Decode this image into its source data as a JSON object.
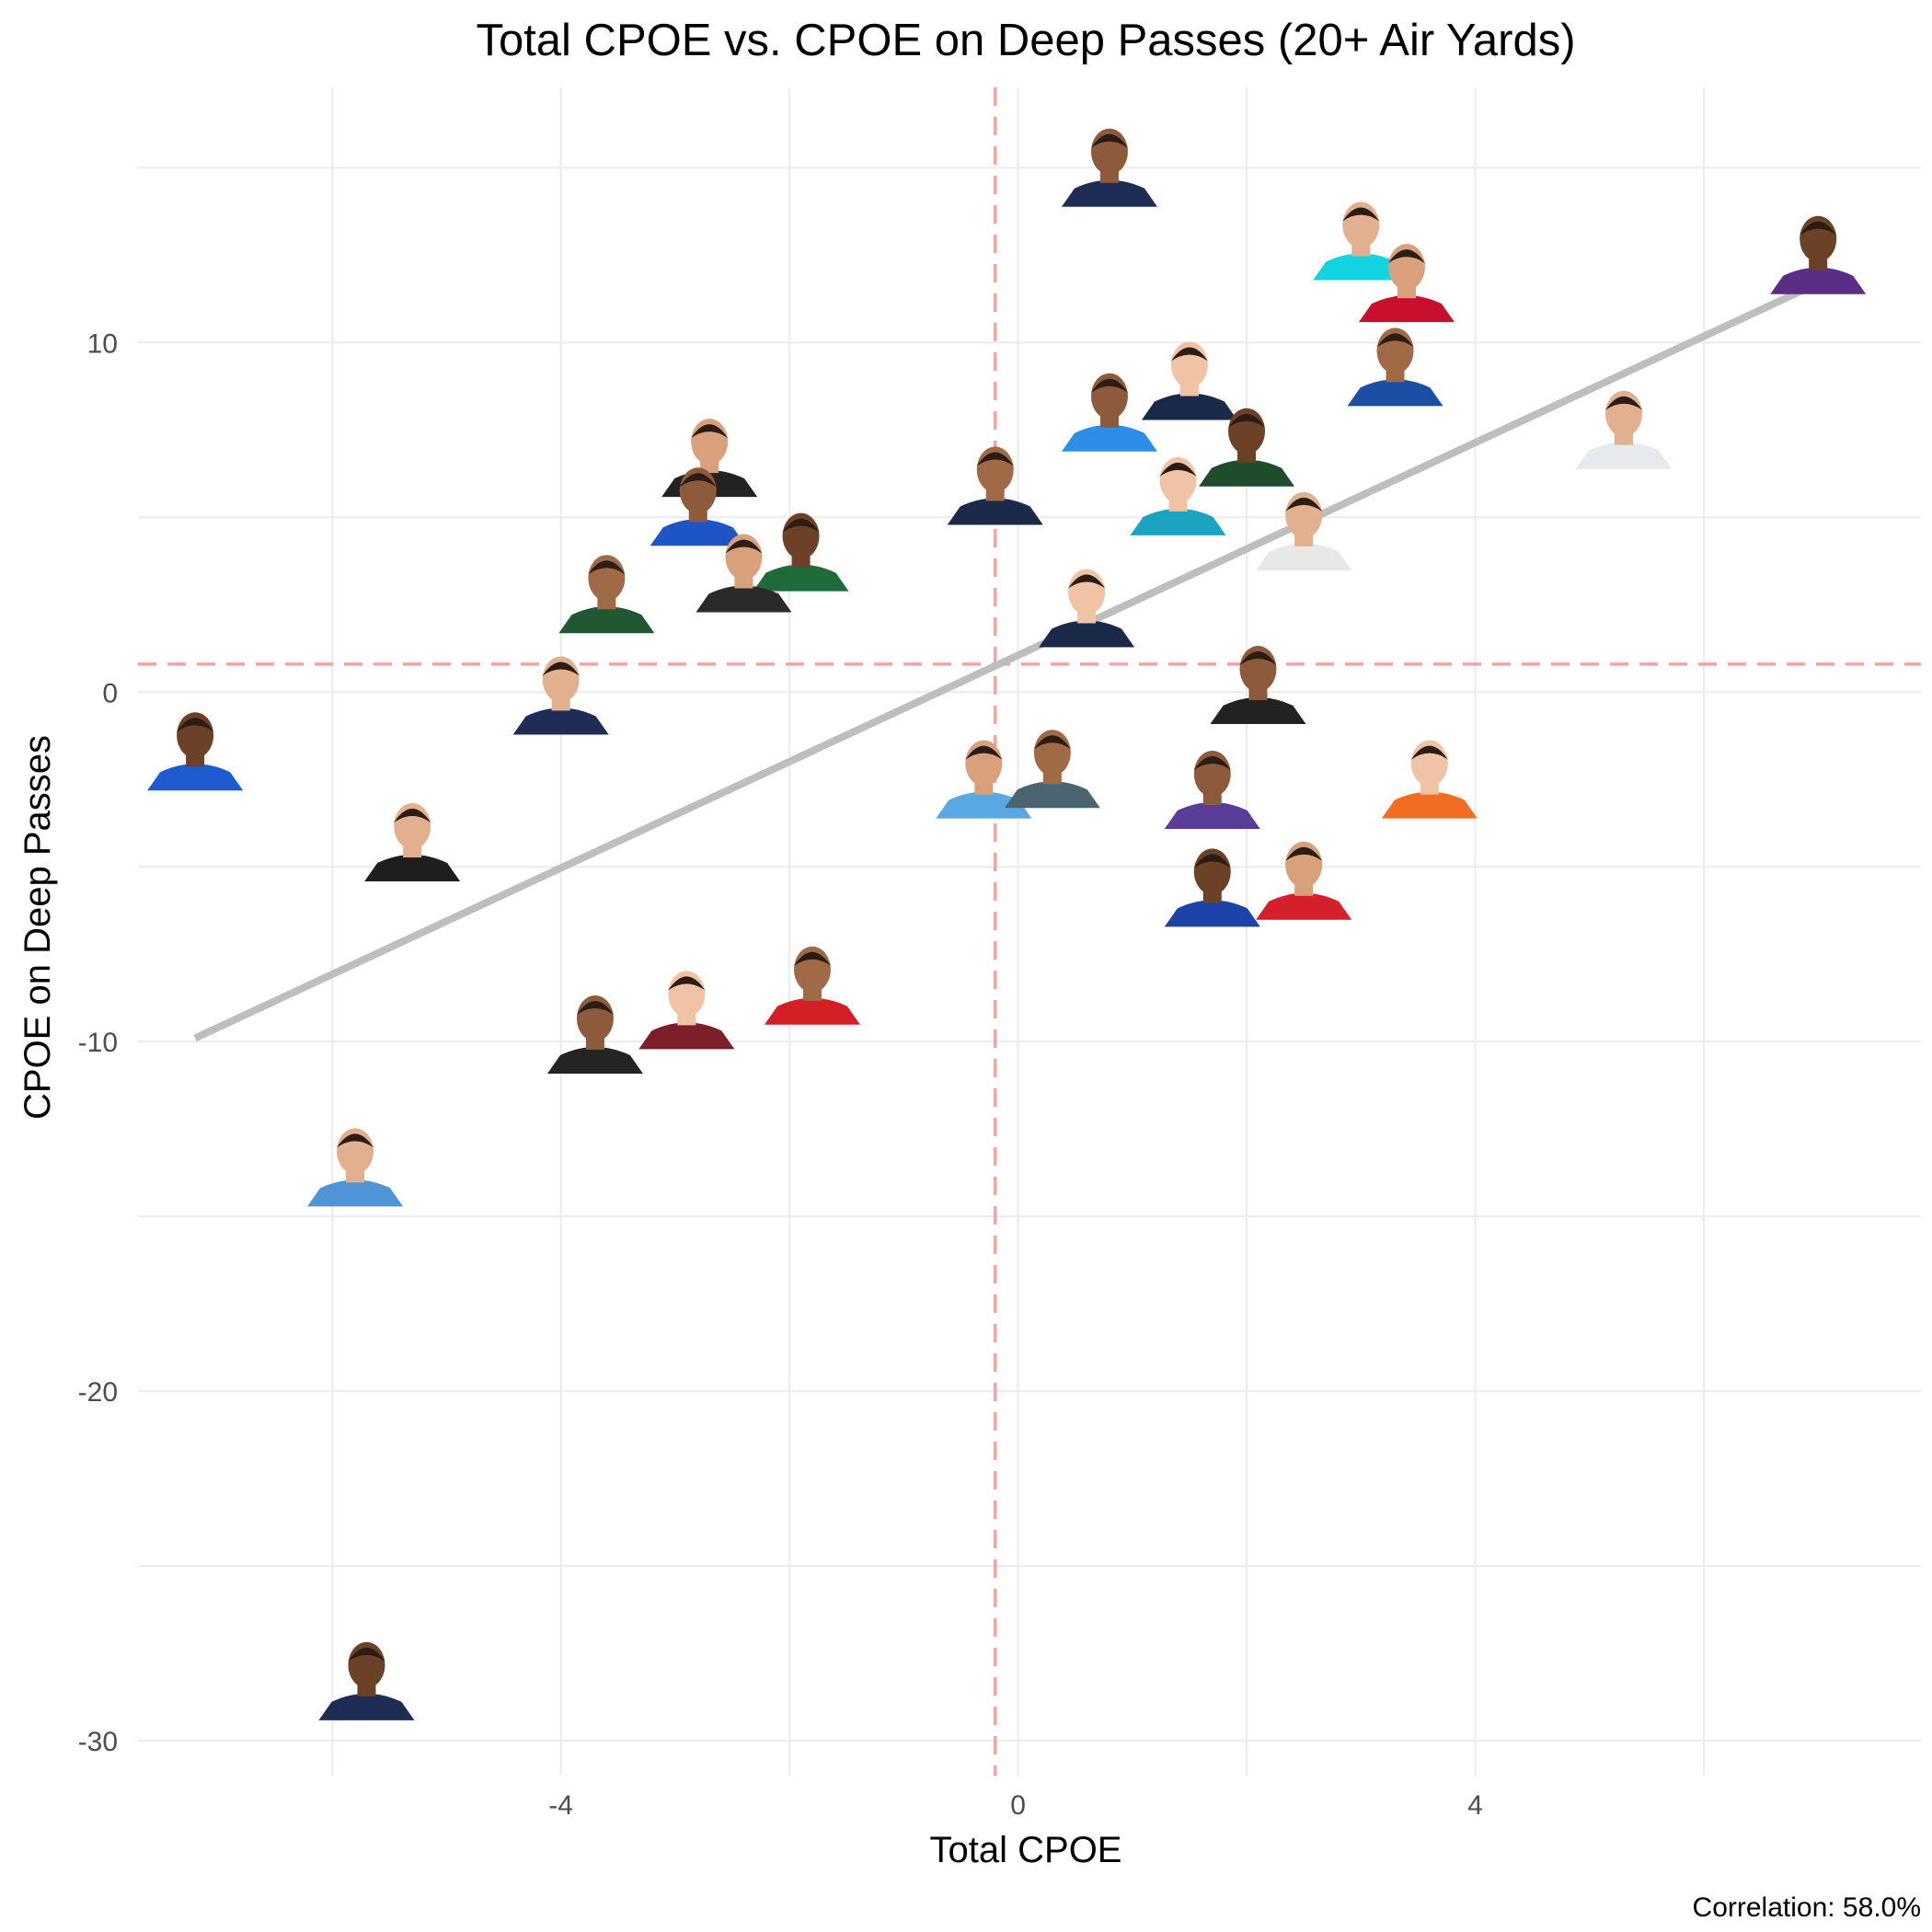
{
  "chart_data": {
    "type": "scatter",
    "title": "Total CPOE vs. CPOE on Deep Passes (20+ Air Yards)",
    "xlabel": "Total CPOE",
    "ylabel": "CPOE on Deep Passes",
    "xlim": [
      -7.7,
      7.9
    ],
    "ylim": [
      -31.0,
      17.3
    ],
    "x_ticks": [
      -4,
      0,
      4
    ],
    "y_ticks": [
      -30,
      -20,
      -10,
      0,
      10
    ],
    "grid": true,
    "reference_lines": {
      "x": -0.2,
      "y": 0.8
    },
    "trend_line": {
      "x": [
        -7.2,
        7.0
      ],
      "y": [
        -9.9,
        11.7
      ]
    },
    "caption": "Correlation: 58.0%",
    "points": [
      {
        "x": 0.8,
        "y": 14.2,
        "jersey": "#1f2d55"
      },
      {
        "x": 3.0,
        "y": 12.1,
        "jersey": "#12d3e0"
      },
      {
        "x": 7.0,
        "y": 11.7,
        "jersey": "#5a2d86"
      },
      {
        "x": 3.4,
        "y": 10.9,
        "jersey": "#c8102e"
      },
      {
        "x": 3.3,
        "y": 8.5,
        "jersey": "#1b4fa6"
      },
      {
        "x": 1.5,
        "y": 8.1,
        "jersey": "#1b2a48"
      },
      {
        "x": 0.8,
        "y": 7.2,
        "jersey": "#2d8ee8"
      },
      {
        "x": 5.3,
        "y": 6.7,
        "jersey": "#e6e9ee"
      },
      {
        "x": 2.0,
        "y": 6.2,
        "jersey": "#1f4d2b"
      },
      {
        "x": -2.7,
        "y": 5.9,
        "jersey": "#222222"
      },
      {
        "x": -0.2,
        "y": 5.1,
        "jersey": "#1b2a48"
      },
      {
        "x": 1.4,
        "y": 4.8,
        "jersey": "#1aa4c0"
      },
      {
        "x": -2.8,
        "y": 4.5,
        "jersey": "#1d55c6"
      },
      {
        "x": 2.5,
        "y": 3.8,
        "jersey": "#e8e8e8"
      },
      {
        "x": -1.9,
        "y": 3.2,
        "jersey": "#1f6b3a"
      },
      {
        "x": -2.4,
        "y": 2.6,
        "jersey": "#2a2a2a"
      },
      {
        "x": -3.6,
        "y": 2.0,
        "jersey": "#215732"
      },
      {
        "x": 0.6,
        "y": 1.6,
        "jersey": "#1b2a48"
      },
      {
        "x": 2.1,
        "y": -0.6,
        "jersey": "#222222"
      },
      {
        "x": -4.0,
        "y": -0.9,
        "jersey": "#1f2d55"
      },
      {
        "x": -7.2,
        "y": -2.5,
        "jersey": "#1d5bd1"
      },
      {
        "x": -0.3,
        "y": -3.3,
        "jersey": "#58a9e3"
      },
      {
        "x": 0.3,
        "y": -3.0,
        "jersey": "#4a6570"
      },
      {
        "x": 3.6,
        "y": -3.3,
        "jersey": "#f26d21"
      },
      {
        "x": 1.7,
        "y": -3.6,
        "jersey": "#5a3d96"
      },
      {
        "x": -5.3,
        "y": -5.1,
        "jersey": "#1e1e1e"
      },
      {
        "x": 1.7,
        "y": -6.4,
        "jersey": "#1d43a8"
      },
      {
        "x": 2.5,
        "y": -6.2,
        "jersey": "#d51f2b"
      },
      {
        "x": -1.8,
        "y": -9.2,
        "jersey": "#d41f26"
      },
      {
        "x": -2.9,
        "y": -9.9,
        "jersey": "#7d1f2a"
      },
      {
        "x": -3.7,
        "y": -10.6,
        "jersey": "#242424"
      },
      {
        "x": -5.8,
        "y": -14.4,
        "jersey": "#4f95d6"
      },
      {
        "x": -5.7,
        "y": -29.1,
        "jersey": "#1f2d55"
      }
    ]
  }
}
